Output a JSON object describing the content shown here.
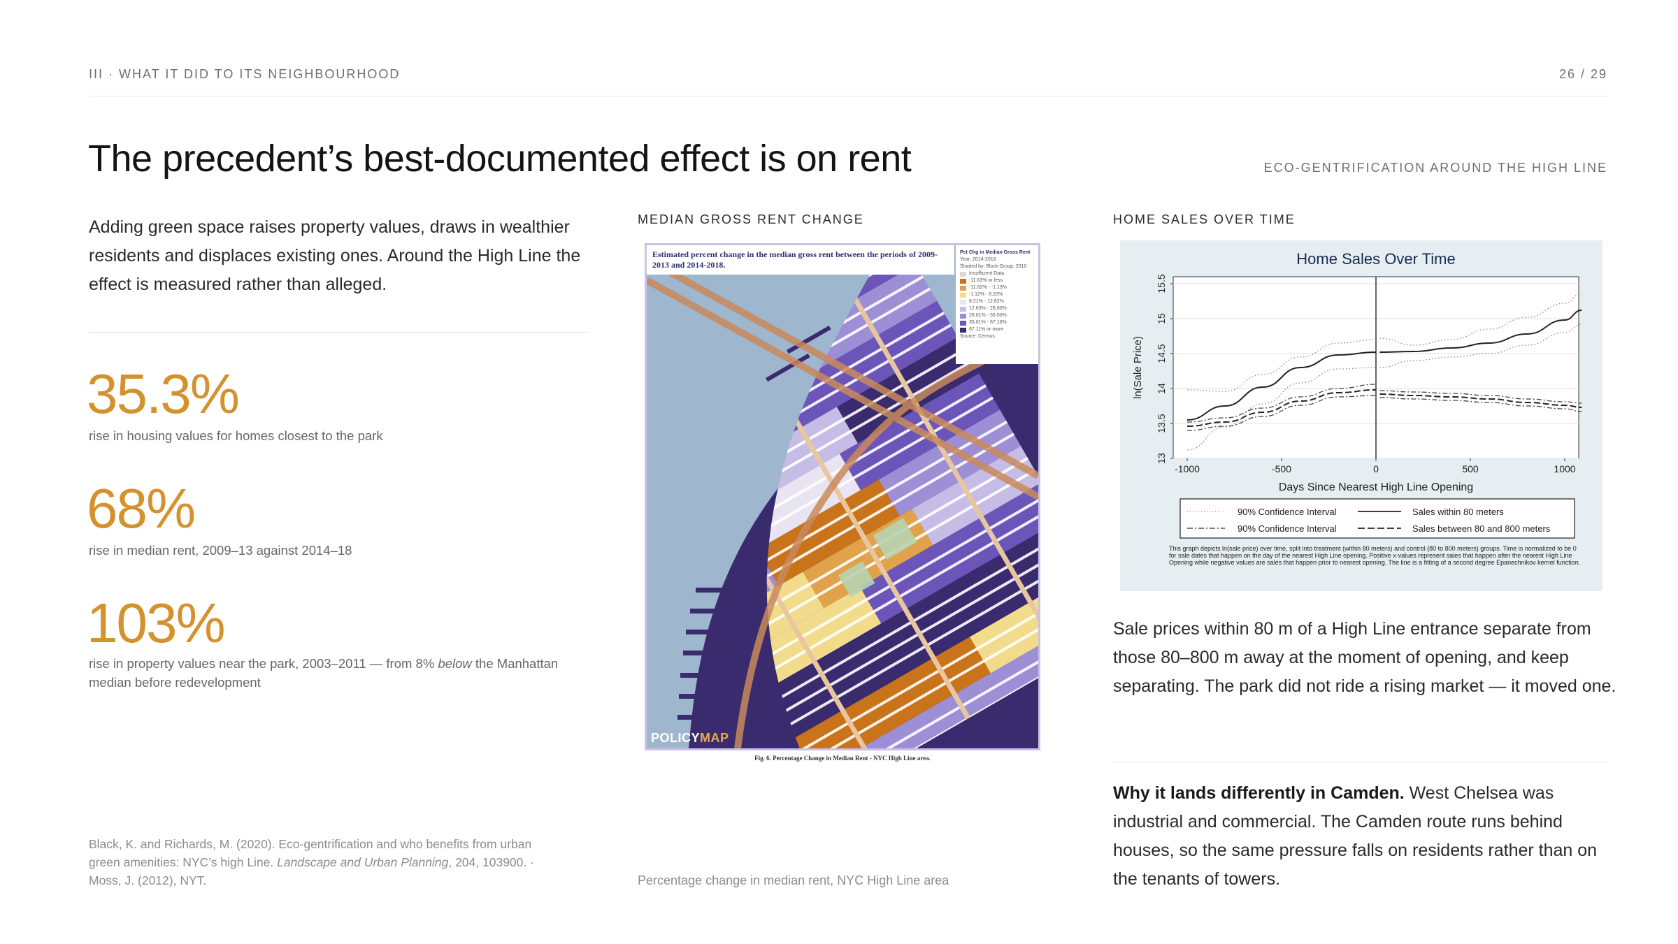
{
  "header": {
    "section": "III · WHAT IT DID TO ITS NEIGHBOURHOOD",
    "page": "26 / 29"
  },
  "title": "The precedent’s best-documented effect is on rent",
  "deck_label": "ECO-GENTRIFICATION AROUND THE HIGH LINE",
  "lead": "Adding green space raises property values, draws in wealthier residents and displaces existing ones. Around the High Line the effect is measured rather than alleged.",
  "stats": [
    {
      "value": "35.3%",
      "caption": "rise in housing values for homes closest to the park"
    },
    {
      "value": "68%",
      "caption": "rise in median rent, 2009–13 against 2014–18"
    },
    {
      "value": "103%",
      "caption_pre": "rise in property values near the park, 2003–2011 — from 8% ",
      "caption_em": "below",
      "caption_post": " the Manhattan median before redevelopment"
    }
  ],
  "citation": {
    "pre": "Black, K. and Richards, M. (2020). Eco-gentrification and who benefits from urban green amenities: NYC’s high Line. ",
    "journal": "Landscape and Urban Planning",
    "post": ", 204, 103900. · Moss, J. (2012), NYT."
  },
  "map": {
    "label": "MEDIAN GROSS RENT CHANGE",
    "title": "Estimated percent change in the median gross rent between the periods of 2009-2013 and 2014-2018.",
    "legend_title": "Pct Chg in Median Gross Rent",
    "legend_year": "Year: 2014-2018",
    "legend_shaded": "Shaded by: Block Group, 2010",
    "legend_items": [
      {
        "label": "Insufficient Data",
        "color": "#d9d9d9"
      },
      {
        "label": "-11.63% or less",
        "color": "#c9731b"
      },
      {
        "label": "-11.62% - -1.13%",
        "color": "#e0a24a"
      },
      {
        "label": "-1.12% - 8.20%",
        "color": "#f2dc8c"
      },
      {
        "label": "8.21% - 12.62%",
        "color": "#e8e4f2"
      },
      {
        "label": "12.63% - 28.00%",
        "color": "#c5bde6"
      },
      {
        "label": "28.01% - 35.00%",
        "color": "#9d8fd6"
      },
      {
        "label": "35.01% - 67.10%",
        "color": "#6b55b8"
      },
      {
        "label": "67.11% or more",
        "color": "#3a2a6e"
      }
    ],
    "legend_source": "Source: Census",
    "brand_a": "POLICY",
    "brand_b": "MAP",
    "fig": "Fig. 6. Percentage Change in Median Rent - NYC High Line area.",
    "caption": "Percentage change in median rent, NYC High Line area"
  },
  "plot": {
    "label": "HOME SALES OVER TIME",
    "legend": {
      "ci1": "90% Confidence Interval",
      "ci2": "90% Confidence Interval",
      "near": "Sales within 80 meters",
      "far": "Sales between 80 and 800 meters"
    },
    "note": "This graph depicts ln(sale price) over time, split into treatment (within 80 meters) and control (80 to 800 meters) groups. Time is normalized to be 0 for sale dates that happen on the day of the nearest High Line opening. Positive x-values represent sales that happen after the nearest High Line Opening while negative values are sales that happen prior to nearest opening. The line is a fitting of a second degree Epanechnikov kernel function."
  },
  "chart_data": {
    "type": "line",
    "title": "Home Sales Over Time",
    "xlabel": "Days Since Nearest High Line Opening",
    "ylabel": "ln(Sale Price)",
    "xlim": [
      -1000,
      1000
    ],
    "ylim": [
      13,
      15.5
    ],
    "xticks": [
      -1000,
      -500,
      0,
      500,
      1000
    ],
    "yticks": [
      13,
      13.5,
      14,
      14.5,
      15,
      15.5
    ],
    "grid": true,
    "series": [
      {
        "name": "Sales within 80 meters",
        "style": "solid",
        "x": [
          -1000,
          -800,
          -600,
          -400,
          -200,
          0
        ],
        "y": [
          13.55,
          13.75,
          14.02,
          14.3,
          14.48,
          14.52
        ]
      },
      {
        "name": "Sales within 80 meters",
        "style": "solid",
        "x": [
          20,
          200,
          400,
          600,
          800,
          1000,
          1090
        ],
        "y": [
          14.52,
          14.53,
          14.58,
          14.65,
          14.78,
          14.98,
          15.12
        ]
      },
      {
        "name": "Sales between 80 and 800 meters",
        "style": "dashed",
        "x": [
          -1000,
          -800,
          -600,
          -400,
          -200,
          0
        ],
        "y": [
          13.46,
          13.52,
          13.66,
          13.82,
          13.94,
          13.98
        ]
      },
      {
        "name": "Sales between 80 and 800 meters",
        "style": "dashed",
        "x": [
          20,
          200,
          400,
          600,
          800,
          1000,
          1090
        ],
        "y": [
          13.92,
          13.9,
          13.88,
          13.85,
          13.8,
          13.76,
          13.73
        ]
      },
      {
        "name": "90% Confidence Interval",
        "style": "dotted",
        "x": [
          -1000,
          -800,
          -600,
          -400,
          -200,
          0
        ],
        "y": [
          13.98,
          13.96,
          14.2,
          14.45,
          14.65,
          14.7
        ]
      },
      {
        "name": "90% Confidence Interval",
        "style": "dotted",
        "x": [
          -1000,
          -800,
          -600,
          -400,
          -200,
          0
        ],
        "y": [
          13.12,
          13.45,
          13.78,
          14.08,
          14.28,
          14.3
        ]
      },
      {
        "name": "90% Confidence Interval",
        "style": "dotted",
        "x": [
          20,
          200,
          400,
          600,
          800,
          1000,
          1090
        ],
        "y": [
          14.72,
          14.62,
          14.7,
          14.85,
          15.02,
          15.22,
          15.36
        ]
      },
      {
        "name": "90% Confidence Interval",
        "style": "dotted",
        "x": [
          20,
          200,
          400,
          600,
          800,
          1000,
          1090
        ],
        "y": [
          14.3,
          14.4,
          14.45,
          14.5,
          14.62,
          14.8,
          14.92
        ]
      },
      {
        "name": "90% Confidence Interval",
        "style": "dashdot",
        "x": [
          -1000,
          -800,
          -600,
          -400,
          -200,
          0
        ],
        "y": [
          13.52,
          13.58,
          13.72,
          13.88,
          14.0,
          14.06
        ]
      },
      {
        "name": "90% Confidence Interval",
        "style": "dashdot",
        "x": [
          -1000,
          -800,
          -600,
          -400,
          -200,
          0
        ],
        "y": [
          13.4,
          13.46,
          13.6,
          13.76,
          13.88,
          13.9
        ]
      },
      {
        "name": "90% Confidence Interval",
        "style": "dashdot",
        "x": [
          20,
          200,
          400,
          600,
          800,
          1000,
          1090
        ],
        "y": [
          13.97,
          13.95,
          13.93,
          13.9,
          13.85,
          13.81,
          13.79
        ]
      },
      {
        "name": "90% Confidence Interval",
        "style": "dashdot",
        "x": [
          20,
          200,
          400,
          600,
          800,
          1000,
          1090
        ],
        "y": [
          13.87,
          13.85,
          13.83,
          13.8,
          13.75,
          13.71,
          13.67
        ]
      }
    ]
  },
  "right_body": "Sale prices within 80 m of a High Line entrance separate from those 80–800 m away at the moment of opening, and keep separating. The park did not ride a rising market — it moved one.",
  "camden": {
    "bold": "Why it lands differently in Camden.",
    "text": " West Chelsea was industrial and commercial. The Camden route runs behind houses, so the same pressure falls on residents rather than on the tenants of towers."
  },
  "colors": {
    "accent": "#d4922e",
    "text": "#1e1e1e",
    "muted": "#8c8c8c"
  }
}
